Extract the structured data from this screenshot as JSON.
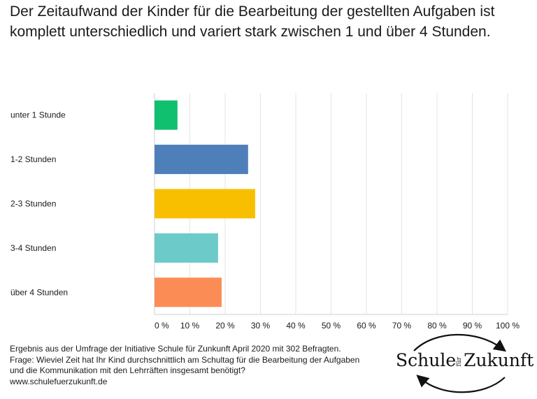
{
  "chart_data": {
    "type": "bar",
    "orientation": "horizontal",
    "title": "Der Zeitaufwand der Kinder für die Bearbeitung der gestellten Aufgaben ist komplett unterschiedlich und variert stark zwischen 1 und über 4 Stunden.",
    "categories": [
      "unter 1 Stunde",
      "1-2 Stunden",
      "2-3 Stunden",
      "3-4 Stunden",
      "über 4 Stunden"
    ],
    "values": [
      6.5,
      26.5,
      28.5,
      18,
      19
    ],
    "colors": [
      "#11c06f",
      "#4f7fba",
      "#f8bf00",
      "#6ccac9",
      "#fc8c55"
    ],
    "xlim": [
      0,
      100
    ],
    "xticks": [
      "0 %",
      "10 %",
      "20 %",
      "30 %",
      "40 %",
      "50 %",
      "60 %",
      "70 %",
      "80 %",
      "90 %",
      "100 %"
    ],
    "grid": true,
    "legend": "none"
  },
  "footer": {
    "lines": [
      "Ergebnis aus der Umfrage der Initiative Schule für Zunkunft  April 2020 mit 302 Befragten.",
      "Frage: Wieviel Zeit hat Ihr Kind durchschnittlich am Schultag für die Bearbeitung der Aufgaben",
      "und die Kommunikation mit den Lehrräften insgesamt benötigt?",
      "www.schulefuerzukunft.de"
    ]
  },
  "logo": {
    "part1": "Schule",
    "part2": "für",
    "part3": "Zukunft"
  }
}
